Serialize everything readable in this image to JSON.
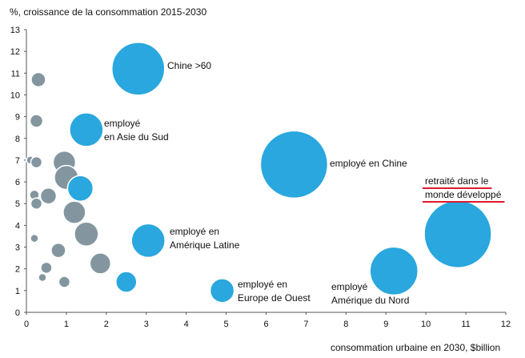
{
  "chart_data": {
    "type": "scatter",
    "ylabel": "%, croissance de la consommation 2015-2030",
    "xlabel": "consommation urbaine en 2030, $billion",
    "xlim": [
      0,
      12
    ],
    "ylim": [
      0,
      13
    ],
    "xticks": [
      "0",
      "1",
      "2",
      "3",
      "4",
      "5",
      "6",
      "7",
      "8",
      "9",
      "10",
      "11",
      "12"
    ],
    "yticks": [
      "0",
      "1",
      "2",
      "3",
      "4",
      "5",
      "6",
      "7",
      "8",
      "9",
      "10",
      "11",
      "12",
      "13"
    ],
    "colors": {
      "highlight": "#29a7de",
      "other": "#8396a0",
      "underline": "#e0182d"
    },
    "highlighted_series": [
      {
        "x": 2.8,
        "y": 11.2,
        "size": 33,
        "label_lines": [
          "Chine >60"
        ]
      },
      {
        "x": 1.5,
        "y": 8.4,
        "size": 21,
        "label_lines": [
          "employé",
          "en Asie du Sud"
        ]
      },
      {
        "x": 6.7,
        "y": 6.8,
        "size": 42,
        "label_lines": [
          "employé en Chine"
        ]
      },
      {
        "x": 1.35,
        "y": 5.7,
        "size": 16,
        "label_lines": []
      },
      {
        "x": 3.05,
        "y": 3.3,
        "size": 21,
        "label_lines": [
          "employé en",
          "Amérique Latine"
        ]
      },
      {
        "x": 2.5,
        "y": 1.4,
        "size": 13,
        "label_lines": []
      },
      {
        "x": 4.9,
        "y": 1.0,
        "size": 15,
        "label_lines": [
          "employé en",
          "Europe de Ouest"
        ]
      },
      {
        "x": 9.2,
        "y": 1.9,
        "size": 30,
        "label_lines": [
          "employé",
          "Amérique du Nord"
        ]
      },
      {
        "x": 10.8,
        "y": 3.6,
        "size": 42,
        "label_lines": [
          "retraité dans le",
          "monde développé"
        ],
        "underlined": true
      }
    ],
    "other_series": [
      {
        "x": 0.3,
        "y": 10.7,
        "size": 9
      },
      {
        "x": 0.25,
        "y": 8.8,
        "size": 8
      },
      {
        "x": 0.1,
        "y": 7.0,
        "size": 5
      },
      {
        "x": 0.25,
        "y": 6.9,
        "size": 7
      },
      {
        "x": 0.95,
        "y": 6.9,
        "size": 14
      },
      {
        "x": 1.0,
        "y": 6.2,
        "size": 15
      },
      {
        "x": 0.2,
        "y": 5.4,
        "size": 6
      },
      {
        "x": 0.55,
        "y": 5.35,
        "size": 10
      },
      {
        "x": 0.25,
        "y": 5.0,
        "size": 7
      },
      {
        "x": 1.2,
        "y": 4.6,
        "size": 14
      },
      {
        "x": 1.5,
        "y": 3.6,
        "size": 15
      },
      {
        "x": 0.2,
        "y": 3.4,
        "size": 5
      },
      {
        "x": 0.8,
        "y": 2.85,
        "size": 9
      },
      {
        "x": 1.85,
        "y": 2.25,
        "size": 13
      },
      {
        "x": 0.5,
        "y": 2.05,
        "size": 7
      },
      {
        "x": 0.4,
        "y": 1.6,
        "size": 5
      },
      {
        "x": 0.95,
        "y": 1.4,
        "size": 7
      }
    ]
  }
}
